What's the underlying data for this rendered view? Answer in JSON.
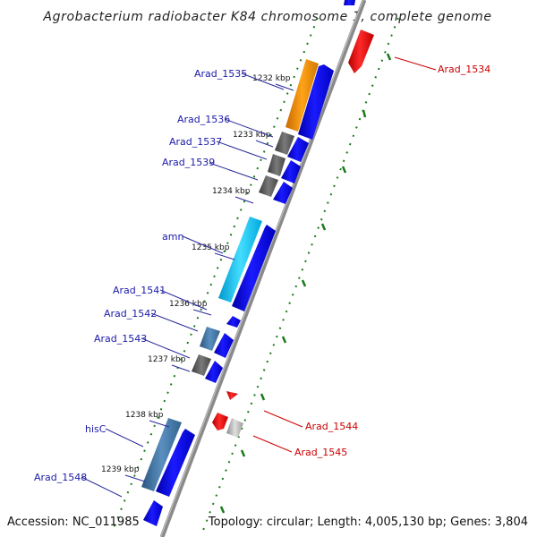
{
  "title": "Agrobacterium radiobacter K84 chromosome 1, complete genome",
  "footer": {
    "accession": "Accession: NC_011985",
    "summary": "Topology: circular; Length: 4,005,130 bp; Genes: 3,804"
  },
  "kbp_ticks": [
    "1232 kbp",
    "1233 kbp",
    "1234 kbp",
    "1235 kbp",
    "1236 kbp",
    "1237 kbp",
    "1238 kbp",
    "1239 kbp"
  ],
  "gene_labels": {
    "left": [
      "Arad_1535",
      "Arad_1536",
      "Arad_1537",
      "Arad_1539",
      "amn",
      "Arad_1541",
      "Arad_1542",
      "Arad_1543",
      "hisC",
      "Arad_1548"
    ],
    "right": [
      "Arad_1534",
      "Arad_1544",
      "Arad_1545"
    ]
  },
  "colors": {
    "forward_strand": "#0000ee",
    "reverse_strand": "#ee0000",
    "backbone": "#888888",
    "tick_green": "#1a7a1a",
    "label_blue": "#1a1aaa",
    "label_red": "#cc0000",
    "cog_orange": "#ff9900",
    "cog_grey": "#666666",
    "cog_cyan": "#22ccee",
    "cog_steel": "#4477aa",
    "cog_lightgrey": "#bbbbbb"
  }
}
